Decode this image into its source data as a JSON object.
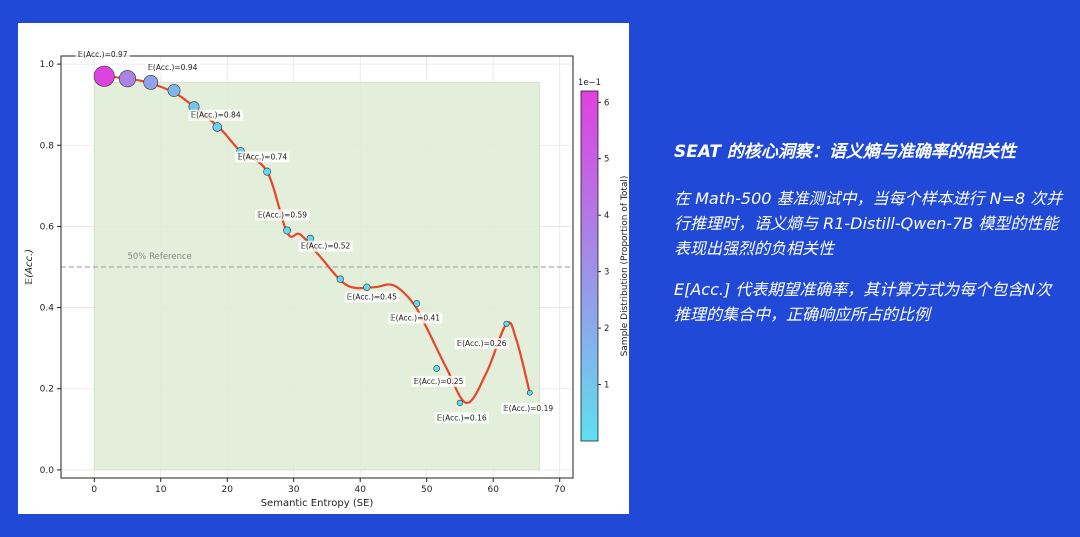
{
  "panel_text": {
    "title": "SEAT 的核心洞察：语义熵与准确率的相关性",
    "para1": "在 Math-500 基准测试中，当每个样本进行 N=8 次并行推理时，语义熵与 R1-Distill-Qwen-7B 模型的性能表现出强烈的负相关性",
    "para2": "E[Acc.] 代表期望准确率，其计算方式为每个包含N次推理的集合中，正确响应所占的比例"
  },
  "chart_data": {
    "type": "line",
    "xlabel": "Semantic Entropy (SE)",
    "ylabel": "𝔼(Acc.)",
    "xlim": [
      -5,
      72
    ],
    "ylim": [
      -0.02,
      1.02
    ],
    "xticks": [
      0,
      10,
      20,
      30,
      40,
      50,
      60,
      70
    ],
    "yticks": [
      0.0,
      0.2,
      0.4,
      0.6,
      0.8,
      1.0
    ],
    "grid": true,
    "colors": {
      "curve": "#e8452a",
      "band": "#dfecd5",
      "marker_high": "#e040e0",
      "marker_low": "#5fdff0"
    },
    "shaded_region": {
      "x": [
        0,
        67
      ],
      "y": [
        0,
        0.955
      ]
    },
    "reference_line": {
      "y": 0.5,
      "label": "50% Reference"
    },
    "curve": {
      "x": [
        1.5,
        3,
        5,
        8,
        12,
        15,
        19,
        22,
        26,
        29,
        31,
        34,
        38,
        42,
        45,
        48,
        50,
        53,
        56,
        59,
        62,
        63.5,
        65.5
      ],
      "y": [
        0.97,
        0.968,
        0.964,
        0.955,
        0.93,
        0.895,
        0.84,
        0.785,
        0.735,
        0.585,
        0.58,
        0.525,
        0.455,
        0.45,
        0.455,
        0.41,
        0.35,
        0.25,
        0.165,
        0.24,
        0.36,
        0.32,
        0.19
      ]
    },
    "points": [
      {
        "x": 1.5,
        "y": 0.97,
        "share": 6.1
      },
      {
        "x": 5,
        "y": 0.964,
        "share": 3.6
      },
      {
        "x": 8.5,
        "y": 0.955,
        "share": 2.4
      },
      {
        "x": 12,
        "y": 0.935,
        "share": 1.6
      },
      {
        "x": 15,
        "y": 0.895,
        "share": 1.0
      },
      {
        "x": 18.5,
        "y": 0.845,
        "share": 0.6
      },
      {
        "x": 22,
        "y": 0.785,
        "share": 0.4
      },
      {
        "x": 26,
        "y": 0.735,
        "share": 0.3
      },
      {
        "x": 29,
        "y": 0.59,
        "share": 0.3
      },
      {
        "x": 32.5,
        "y": 0.57,
        "share": 0.25
      },
      {
        "x": 37,
        "y": 0.47,
        "share": 0.2
      },
      {
        "x": 41,
        "y": 0.45,
        "share": 0.2
      },
      {
        "x": 48.5,
        "y": 0.41,
        "share": 0.15
      },
      {
        "x": 51.5,
        "y": 0.25,
        "share": 0.12
      },
      {
        "x": 55,
        "y": 0.165,
        "share": 0.1
      },
      {
        "x": 62,
        "y": 0.36,
        "share": 0.08
      },
      {
        "x": 65.5,
        "y": 0.19,
        "share": 0.05
      }
    ],
    "annotations": [
      {
        "text": "𝔼(Acc.)=0.97",
        "x": -2.5,
        "y": 1.018
      },
      {
        "text": "𝔼(Acc.)=0.94",
        "x": 8,
        "y": 0.985
      },
      {
        "text": "𝔼(Acc.)=0.84",
        "x": 14.5,
        "y": 0.868
      },
      {
        "text": "𝔼(Acc.)=0.74",
        "x": 21.5,
        "y": 0.765
      },
      {
        "text": "𝔼(Acc.)=0.59",
        "x": 24.5,
        "y": 0.622
      },
      {
        "text": "𝔼(Acc.)=0.52",
        "x": 31,
        "y": 0.545
      },
      {
        "text": "𝔼(Acc.)=0.45",
        "x": 38,
        "y": 0.42
      },
      {
        "text": "𝔼(Acc.)=0.41",
        "x": 44.5,
        "y": 0.368
      },
      {
        "text": "𝔼(Acc.)=0.26",
        "x": 54.5,
        "y": 0.305
      },
      {
        "text": "𝔼(Acc.)=0.25",
        "x": 48,
        "y": 0.212
      },
      {
        "text": "𝔼(Acc.)=0.16",
        "x": 51.5,
        "y": 0.122
      },
      {
        "text": "𝔼(Acc.)=0.19",
        "x": 61.5,
        "y": 0.145
      }
    ],
    "colorbar": {
      "label": "Sample Distribution (Proportion of Total)",
      "exponent": "1e−1",
      "range": [
        0,
        6.2
      ],
      "ticks": [
        1,
        2,
        3,
        4,
        5,
        6
      ]
    }
  }
}
